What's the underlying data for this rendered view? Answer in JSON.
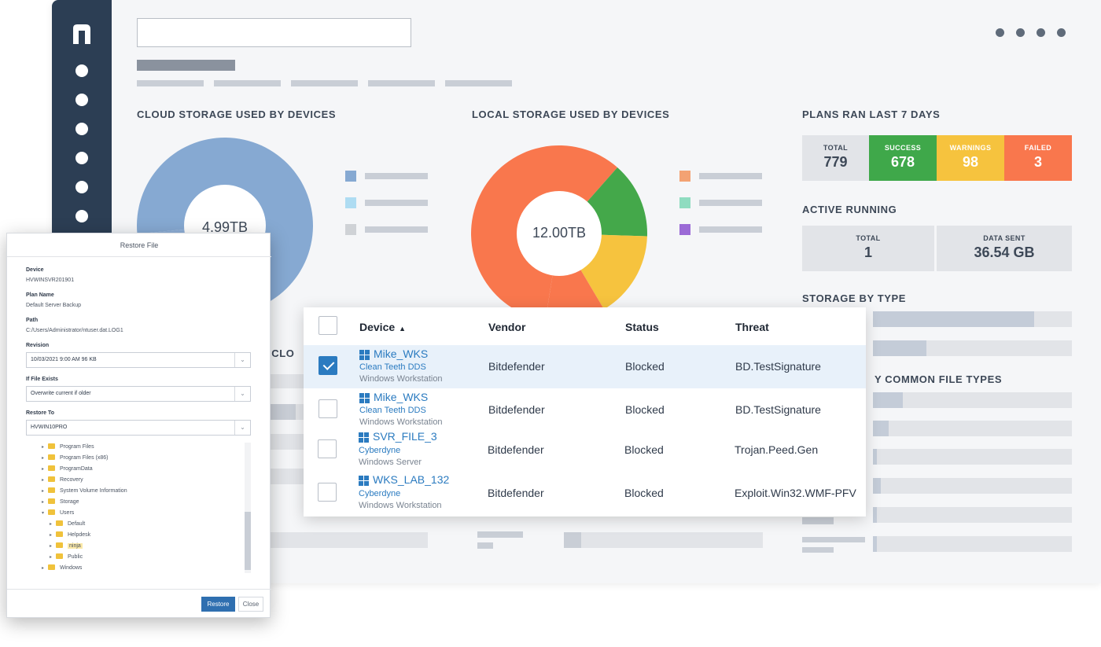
{
  "colors": {
    "sidebar": "#2c3e54",
    "accent_blue": "#2b7bc0",
    "success": "#3fa84a",
    "warning": "#f6c33e",
    "failed": "#f9774d"
  },
  "cloud_storage": {
    "title": "CLOUD STORAGE USED BY DEVICES",
    "center_value": "4.99TB",
    "segments": [
      {
        "color": "#86a9d2",
        "fraction": 0.8
      },
      {
        "color": "#aedcf2",
        "fraction": 0.07
      },
      {
        "color": "#cfd2d6",
        "fraction": 0.09
      },
      {
        "color": "#8fb0d8",
        "fraction": 0.04
      }
    ],
    "legend_colors": [
      "#86a9d2",
      "#aedcf2",
      "#cfd2d6"
    ]
  },
  "local_storage": {
    "title": "LOCAL STORAGE USED BY DEVICES",
    "center_value": "12.00TB",
    "segments": [
      {
        "color": "#f9774d",
        "fraction": 0.59
      },
      {
        "color": "#44a84a",
        "fraction": 0.14
      },
      {
        "color": "#f6c33e",
        "fraction": 0.16
      },
      {
        "color": "#f9774d",
        "fraction": 0.11
      }
    ],
    "legend_colors": [
      "#f3a273",
      "#8fdcc0",
      "#9b6ad6"
    ]
  },
  "plans": {
    "title": "PLANS RAN LAST 7 DAYS",
    "boxes": [
      {
        "label": "TOTAL",
        "value": "779"
      },
      {
        "label": "SUCCESS",
        "value": "678"
      },
      {
        "label": "WARNINGS",
        "value": "98"
      },
      {
        "label": "FAILED",
        "value": "3"
      }
    ]
  },
  "active_running": {
    "title": "ACTIVE RUNNING",
    "boxes": [
      {
        "label": "TOTAL",
        "value": "1"
      },
      {
        "label": "DATA SENT",
        "value": "36.54 GB"
      }
    ]
  },
  "storage_by_type": {
    "title": "STORAGE BY TYPE",
    "levels": [
      0.81,
      0.27
    ]
  },
  "common_file_types": {
    "title_fragment": "Y COMMON FILE TYPES",
    "levels": [
      0.15,
      0.08,
      0.02,
      0.04,
      0.02,
      0.02,
      0.12
    ]
  },
  "partial_title": "R CLO",
  "threats_table": {
    "headers": {
      "device": "Device",
      "vendor": "Vendor",
      "status": "Status",
      "threat": "Threat"
    },
    "rows": [
      {
        "name": "Mike_WKS",
        "org": "Clean Teeth DDS",
        "type": "Windows Workstation",
        "vendor": "Bitdefender",
        "status": "Blocked",
        "threat": "BD.TestSignature",
        "checked": true
      },
      {
        "name": "Mike_WKS",
        "org": "Clean Teeth DDS",
        "type": "Windows Workstation",
        "vendor": "Bitdefender",
        "status": "Blocked",
        "threat": "BD.TestSignature",
        "checked": false
      },
      {
        "name": "SVR_FILE_3",
        "org": "Cyberdyne",
        "type": "Windows Server",
        "vendor": "Bitdefender",
        "status": "Blocked",
        "threat": "Trojan.Peed.Gen",
        "checked": false
      },
      {
        "name": "WKS_LAB_132",
        "org": "Cyberdyne",
        "type": "Windows Workstation",
        "vendor": "Bitdefender",
        "status": "Blocked",
        "threat": "Exploit.Win32.WMF-PFV",
        "checked": false
      }
    ]
  },
  "restore_dialog": {
    "title": "Restore File",
    "device_label": "Device",
    "device_value": "HVWINSVR201901",
    "plan_label": "Plan Name",
    "plan_value": "Default Server Backup",
    "path_label": "Path",
    "path_value": "C:/Users/Administrator/ntuser.dat.LOG1",
    "revision_label": "Revision",
    "revision_value": "10/03/2021 9:00 AM 96 KB",
    "if_exists_label": "If File Exists",
    "if_exists_value": "Overwrite current if older",
    "restore_to_label": "Restore To",
    "restore_to_value": "HVWIN10PRO",
    "tree": [
      {
        "label": "Program Files",
        "level": 1,
        "arrow": "▸"
      },
      {
        "label": "Program Files (x86)",
        "level": 1,
        "arrow": "▸"
      },
      {
        "label": "ProgramData",
        "level": 1,
        "arrow": "▸"
      },
      {
        "label": "Recovery",
        "level": 1,
        "arrow": "▸"
      },
      {
        "label": "System Volume Information",
        "level": 1,
        "arrow": "▸"
      },
      {
        "label": "Storage",
        "level": 1,
        "arrow": "▸"
      },
      {
        "label": "Users",
        "level": 1,
        "arrow": "▾"
      },
      {
        "label": "Default",
        "level": 2,
        "arrow": "▸"
      },
      {
        "label": "Helpdesk",
        "level": 2,
        "arrow": "▸"
      },
      {
        "label": "ninja",
        "level": 2,
        "arrow": "▸",
        "highlight": true
      },
      {
        "label": "Public",
        "level": 2,
        "arrow": "▸"
      },
      {
        "label": "Windows",
        "level": 1,
        "arrow": "▸"
      }
    ],
    "restore_button": "Restore",
    "close_button": "Close"
  }
}
